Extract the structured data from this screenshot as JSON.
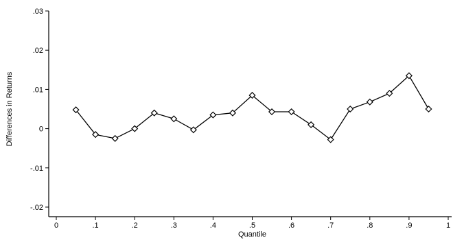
{
  "chart_data": {
    "type": "line",
    "title": "",
    "xlabel": "Quantile",
    "ylabel": "Differences in Returns",
    "xlim": [
      0,
      1
    ],
    "ylim": [
      -0.02,
      0.03
    ],
    "x_ticks": [
      0,
      0.1,
      0.2,
      0.3,
      0.4,
      0.5,
      0.6,
      0.7,
      0.8,
      0.9,
      1
    ],
    "x_tick_labels": [
      "0",
      ".1",
      ".2",
      ".3",
      ".4",
      ".5",
      ".6",
      ".7",
      ".8",
      ".9",
      "1"
    ],
    "y_ticks": [
      -0.02,
      -0.01,
      0,
      0.01,
      0.02,
      0.03
    ],
    "y_tick_labels": [
      "-.02",
      "-.01",
      "0",
      ".01",
      ".02",
      ".03"
    ],
    "grid": false,
    "marker": "diamond-hollow",
    "series": [
      {
        "x": [
          0.05,
          0.1,
          0.15,
          0.2,
          0.25,
          0.3,
          0.35,
          0.4,
          0.45,
          0.5,
          0.55,
          0.6,
          0.65,
          0.7,
          0.75,
          0.8,
          0.85,
          0.9,
          0.95
        ],
        "y": [
          0.0048,
          -0.0015,
          -0.0025,
          0.0,
          0.004,
          0.0025,
          -0.0003,
          0.0035,
          0.004,
          0.0085,
          0.0043,
          0.0043,
          0.001,
          -0.0028,
          0.005,
          0.0068,
          0.009,
          0.0135,
          0.005
        ]
      }
    ],
    "colors": {
      "line": "#000000",
      "axis": "#000000",
      "background": "#ffffff"
    }
  }
}
